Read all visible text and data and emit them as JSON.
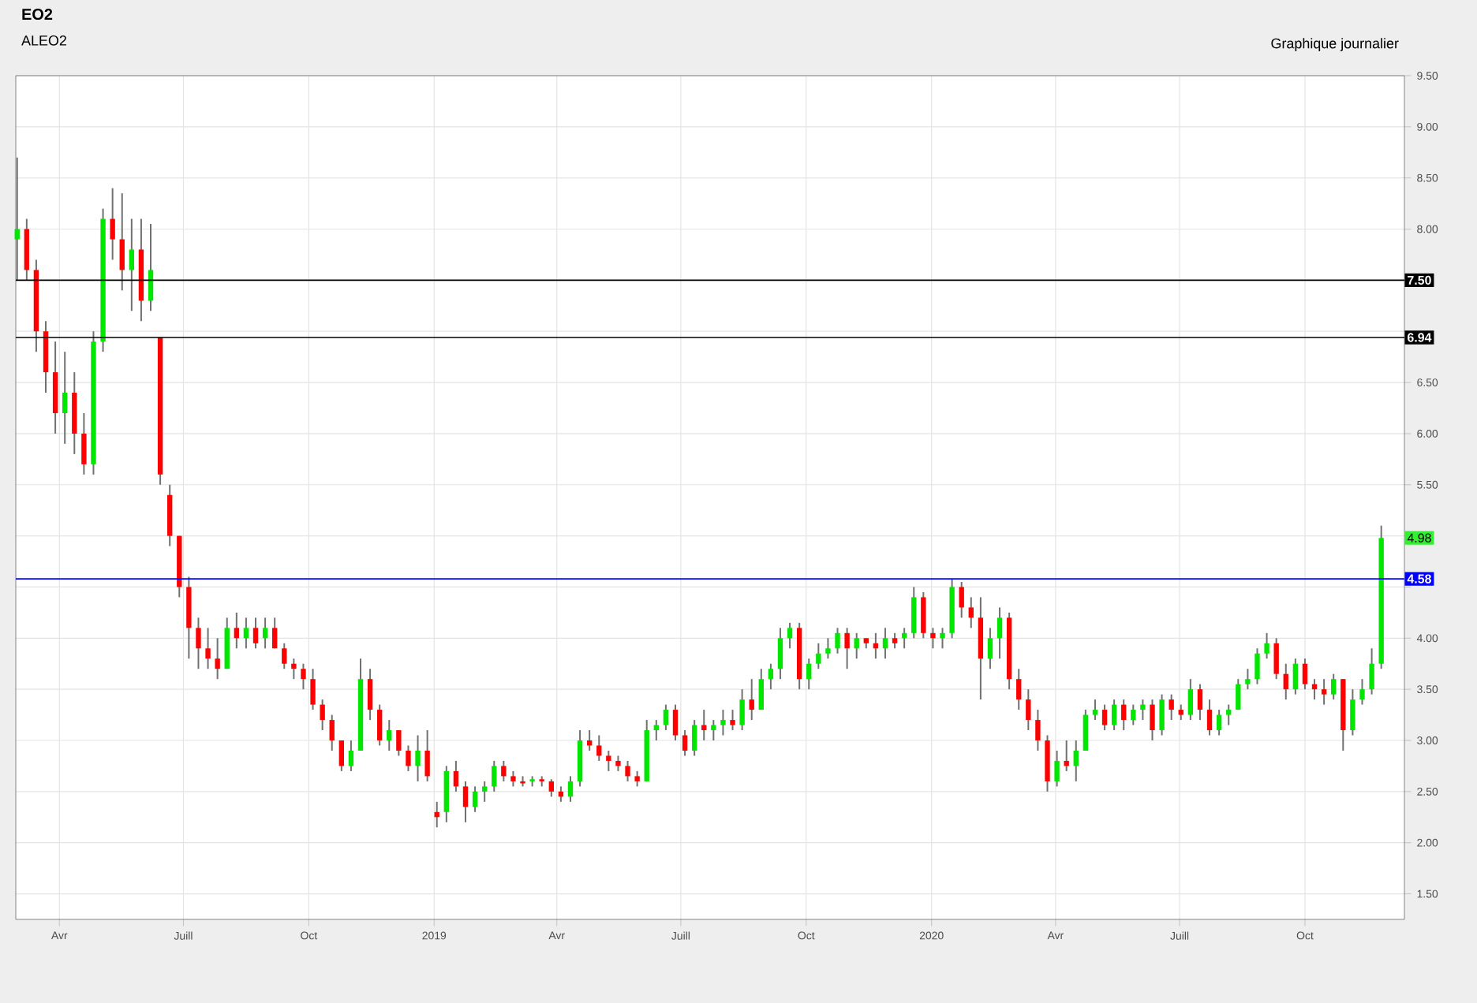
{
  "chart_data": {
    "type": "candlestick",
    "title": "EO2",
    "subtitle": "ALEO2",
    "annotations": [
      "Graphique journalier",
      {
        "text": "4.98",
        "y": 4.98
      }
    ],
    "x": [
      "2018-03-01",
      "2018-03-08",
      "2018-03-15",
      "2018-03-22",
      "2018-03-29",
      "2018-04-05",
      "2018-04-12",
      "2018-04-19",
      "2018-04-26",
      "2018-05-03",
      "2018-05-10",
      "2018-05-17",
      "2018-05-24",
      "2018-05-31",
      "2018-06-07",
      "2018-06-14",
      "2018-06-21",
      "2018-06-28",
      "2018-07-05",
      "2018-07-12",
      "2018-07-19",
      "2018-07-26",
      "2018-08-02",
      "2018-08-09",
      "2018-08-16",
      "2018-08-23",
      "2018-08-30",
      "2018-09-06",
      "2018-09-13",
      "2018-09-20",
      "2018-09-27",
      "2018-10-04",
      "2018-10-11",
      "2018-10-18",
      "2018-10-25",
      "2018-11-01",
      "2018-11-08",
      "2018-11-15",
      "2018-11-22",
      "2018-11-29",
      "2018-12-06",
      "2018-12-13",
      "2018-12-20",
      "2018-12-27",
      "2019-01-03",
      "2019-01-10",
      "2019-01-17",
      "2019-01-24",
      "2019-01-31",
      "2019-02-07",
      "2019-02-14",
      "2019-02-21",
      "2019-02-28",
      "2019-03-07",
      "2019-03-14",
      "2019-03-21",
      "2019-03-28",
      "2019-04-04",
      "2019-04-11",
      "2019-04-18",
      "2019-04-25",
      "2019-05-02",
      "2019-05-09",
      "2019-05-16",
      "2019-05-23",
      "2019-05-30",
      "2019-06-06",
      "2019-06-13",
      "2019-06-20",
      "2019-06-27",
      "2019-07-04",
      "2019-07-11",
      "2019-07-18",
      "2019-07-25",
      "2019-08-01",
      "2019-08-08",
      "2019-08-15",
      "2019-08-22",
      "2019-08-29",
      "2019-09-05",
      "2019-09-12",
      "2019-09-19",
      "2019-09-26",
      "2019-10-03",
      "2019-10-10",
      "2019-10-17",
      "2019-10-24",
      "2019-10-31",
      "2019-11-07",
      "2019-11-14",
      "2019-11-21",
      "2019-11-28",
      "2019-12-05",
      "2019-12-12",
      "2019-12-19",
      "2019-12-26",
      "2020-01-02",
      "2020-01-09",
      "2020-01-16",
      "2020-01-23",
      "2020-01-30",
      "2020-02-06",
      "2020-02-13",
      "2020-02-20",
      "2020-02-27",
      "2020-03-05",
      "2020-03-12",
      "2020-03-19",
      "2020-03-26",
      "2020-04-02",
      "2020-04-09",
      "2020-04-16",
      "2020-04-23",
      "2020-04-30",
      "2020-05-07",
      "2020-05-14",
      "2020-05-21",
      "2020-05-28",
      "2020-06-04",
      "2020-06-11",
      "2020-06-18",
      "2020-06-25",
      "2020-07-02",
      "2020-07-09",
      "2020-07-16",
      "2020-07-23",
      "2020-07-30",
      "2020-08-06",
      "2020-08-13",
      "2020-08-20",
      "2020-08-27",
      "2020-09-03",
      "2020-09-10",
      "2020-09-17",
      "2020-09-24",
      "2020-10-01",
      "2020-10-08",
      "2020-10-15",
      "2020-10-22",
      "2020-10-29",
      "2020-11-05",
      "2020-11-12",
      "2020-11-19",
      "2020-11-26"
    ],
    "ohlc": [
      [
        7.9,
        8.7,
        7.5,
        8.0
      ],
      [
        8.0,
        8.1,
        7.5,
        7.6
      ],
      [
        7.6,
        7.7,
        6.8,
        7.0
      ],
      [
        7.0,
        7.1,
        6.4,
        6.6
      ],
      [
        6.6,
        6.9,
        6.0,
        6.2
      ],
      [
        6.2,
        6.8,
        5.9,
        6.4
      ],
      [
        6.4,
        6.6,
        5.8,
        6.0
      ],
      [
        6.0,
        6.2,
        5.6,
        5.7
      ],
      [
        5.7,
        7.0,
        5.6,
        6.9
      ],
      [
        6.9,
        8.2,
        6.8,
        8.1
      ],
      [
        8.1,
        8.4,
        7.7,
        7.9
      ],
      [
        7.9,
        8.35,
        7.4,
        7.6
      ],
      [
        7.6,
        8.1,
        7.2,
        7.8
      ],
      [
        7.8,
        8.1,
        7.1,
        7.3
      ],
      [
        7.3,
        8.05,
        7.2,
        7.6
      ],
      [
        6.94,
        6.94,
        5.5,
        5.6
      ],
      [
        5.4,
        5.5,
        4.9,
        5.0
      ],
      [
        5.0,
        5.0,
        4.4,
        4.5
      ],
      [
        4.5,
        4.6,
        3.8,
        4.1
      ],
      [
        4.1,
        4.2,
        3.7,
        3.9
      ],
      [
        3.9,
        4.1,
        3.7,
        3.8
      ],
      [
        3.8,
        4.0,
        3.6,
        3.7
      ],
      [
        3.7,
        4.2,
        3.7,
        4.1
      ],
      [
        4.1,
        4.25,
        3.9,
        4.0
      ],
      [
        4.0,
        4.2,
        3.9,
        4.1
      ],
      [
        4.1,
        4.2,
        3.9,
        3.95
      ],
      [
        4.0,
        4.2,
        3.9,
        4.1
      ],
      [
        4.1,
        4.2,
        3.9,
        3.9
      ],
      [
        3.9,
        3.95,
        3.7,
        3.75
      ],
      [
        3.75,
        3.8,
        3.6,
        3.7
      ],
      [
        3.7,
        3.75,
        3.5,
        3.6
      ],
      [
        3.6,
        3.7,
        3.3,
        3.35
      ],
      [
        3.35,
        3.4,
        3.1,
        3.2
      ],
      [
        3.2,
        3.25,
        2.9,
        3.0
      ],
      [
        3.0,
        3.0,
        2.7,
        2.75
      ],
      [
        2.75,
        3.0,
        2.7,
        2.9
      ],
      [
        2.9,
        3.8,
        2.9,
        3.6
      ],
      [
        3.6,
        3.7,
        3.2,
        3.3
      ],
      [
        3.3,
        3.35,
        2.95,
        3.0
      ],
      [
        3.0,
        3.2,
        2.9,
        3.1
      ],
      [
        3.1,
        3.1,
        2.85,
        2.9
      ],
      [
        2.9,
        2.95,
        2.7,
        2.75
      ],
      [
        2.75,
        3.05,
        2.6,
        2.9
      ],
      [
        2.9,
        3.1,
        2.6,
        2.65
      ],
      [
        2.3,
        2.4,
        2.15,
        2.25
      ],
      [
        2.3,
        2.75,
        2.2,
        2.7
      ],
      [
        2.7,
        2.8,
        2.5,
        2.55
      ],
      [
        2.55,
        2.6,
        2.2,
        2.35
      ],
      [
        2.35,
        2.55,
        2.3,
        2.5
      ],
      [
        2.5,
        2.6,
        2.4,
        2.55
      ],
      [
        2.55,
        2.8,
        2.5,
        2.75
      ],
      [
        2.75,
        2.8,
        2.6,
        2.65
      ],
      [
        2.65,
        2.7,
        2.55,
        2.6
      ],
      [
        2.6,
        2.65,
        2.55,
        2.58
      ],
      [
        2.6,
        2.65,
        2.55,
        2.62
      ],
      [
        2.62,
        2.65,
        2.55,
        2.6
      ],
      [
        2.6,
        2.62,
        2.45,
        2.5
      ],
      [
        2.5,
        2.55,
        2.4,
        2.45
      ],
      [
        2.45,
        2.65,
        2.4,
        2.6
      ],
      [
        2.6,
        3.1,
        2.55,
        3.0
      ],
      [
        3.0,
        3.1,
        2.9,
        2.95
      ],
      [
        2.95,
        3.05,
        2.8,
        2.85
      ],
      [
        2.85,
        2.9,
        2.7,
        2.8
      ],
      [
        2.8,
        2.85,
        2.7,
        2.75
      ],
      [
        2.75,
        2.8,
        2.6,
        2.65
      ],
      [
        2.65,
        2.7,
        2.55,
        2.6
      ],
      [
        2.6,
        3.2,
        2.6,
        3.1
      ],
      [
        3.1,
        3.2,
        3.0,
        3.15
      ],
      [
        3.15,
        3.35,
        3.1,
        3.3
      ],
      [
        3.3,
        3.35,
        3.0,
        3.05
      ],
      [
        3.05,
        3.1,
        2.85,
        2.9
      ],
      [
        2.9,
        3.2,
        2.85,
        3.15
      ],
      [
        3.15,
        3.3,
        3.0,
        3.1
      ],
      [
        3.1,
        3.2,
        3.0,
        3.15
      ],
      [
        3.15,
        3.3,
        3.05,
        3.2
      ],
      [
        3.2,
        3.3,
        3.1,
        3.15
      ],
      [
        3.15,
        3.5,
        3.1,
        3.4
      ],
      [
        3.4,
        3.6,
        3.2,
        3.3
      ],
      [
        3.3,
        3.7,
        3.3,
        3.6
      ],
      [
        3.6,
        3.75,
        3.5,
        3.7
      ],
      [
        3.7,
        4.1,
        3.6,
        4.0
      ],
      [
        4.0,
        4.15,
        3.9,
        4.1
      ],
      [
        4.1,
        4.15,
        3.5,
        3.6
      ],
      [
        3.6,
        3.8,
        3.5,
        3.75
      ],
      [
        3.75,
        3.95,
        3.7,
        3.85
      ],
      [
        3.85,
        4.0,
        3.8,
        3.9
      ],
      [
        3.9,
        4.1,
        3.85,
        4.05
      ],
      [
        4.05,
        4.1,
        3.7,
        3.9
      ],
      [
        3.9,
        4.05,
        3.8,
        4.0
      ],
      [
        4.0,
        4.0,
        3.9,
        3.95
      ],
      [
        3.95,
        4.05,
        3.8,
        3.9
      ],
      [
        3.9,
        4.1,
        3.8,
        4.0
      ],
      [
        4.0,
        4.05,
        3.9,
        3.95
      ],
      [
        4.0,
        4.1,
        3.9,
        4.05
      ],
      [
        4.05,
        4.5,
        4.0,
        4.4
      ],
      [
        4.4,
        4.45,
        4.0,
        4.05
      ],
      [
        4.05,
        4.1,
        3.9,
        4.0
      ],
      [
        4.0,
        4.1,
        3.9,
        4.05
      ],
      [
        4.05,
        4.58,
        4.0,
        4.5
      ],
      [
        4.5,
        4.55,
        4.2,
        4.3
      ],
      [
        4.3,
        4.4,
        4.1,
        4.2
      ],
      [
        4.2,
        4.4,
        3.4,
        3.8
      ],
      [
        3.8,
        4.1,
        3.7,
        4.0
      ],
      [
        4.0,
        4.3,
        3.8,
        4.2
      ],
      [
        4.2,
        4.25,
        3.5,
        3.6
      ],
      [
        3.6,
        3.7,
        3.3,
        3.4
      ],
      [
        3.4,
        3.5,
        3.1,
        3.2
      ],
      [
        3.2,
        3.3,
        2.9,
        3.0
      ],
      [
        3.0,
        3.05,
        2.5,
        2.6
      ],
      [
        2.6,
        2.9,
        2.55,
        2.8
      ],
      [
        2.8,
        3.0,
        2.7,
        2.75
      ],
      [
        2.75,
        3.0,
        2.6,
        2.9
      ],
      [
        2.9,
        3.3,
        2.9,
        3.25
      ],
      [
        3.25,
        3.4,
        3.2,
        3.3
      ],
      [
        3.3,
        3.35,
        3.1,
        3.15
      ],
      [
        3.15,
        3.4,
        3.1,
        3.35
      ],
      [
        3.35,
        3.4,
        3.1,
        3.2
      ],
      [
        3.2,
        3.35,
        3.15,
        3.3
      ],
      [
        3.3,
        3.4,
        3.2,
        3.35
      ],
      [
        3.35,
        3.4,
        3.0,
        3.1
      ],
      [
        3.1,
        3.45,
        3.05,
        3.4
      ],
      [
        3.4,
        3.45,
        3.2,
        3.3
      ],
      [
        3.3,
        3.35,
        3.2,
        3.25
      ],
      [
        3.25,
        3.6,
        3.2,
        3.5
      ],
      [
        3.5,
        3.55,
        3.2,
        3.3
      ],
      [
        3.3,
        3.4,
        3.05,
        3.1
      ],
      [
        3.1,
        3.3,
        3.05,
        3.25
      ],
      [
        3.25,
        3.35,
        3.15,
        3.3
      ],
      [
        3.3,
        3.6,
        3.3,
        3.55
      ],
      [
        3.55,
        3.7,
        3.5,
        3.6
      ],
      [
        3.6,
        3.9,
        3.55,
        3.85
      ],
      [
        3.85,
        4.05,
        3.8,
        3.95
      ],
      [
        3.95,
        4.0,
        3.6,
        3.65
      ],
      [
        3.65,
        3.75,
        3.4,
        3.5
      ],
      [
        3.5,
        3.8,
        3.45,
        3.75
      ],
      [
        3.75,
        3.8,
        3.5,
        3.55
      ],
      [
        3.55,
        3.6,
        3.4,
        3.5
      ],
      [
        3.5,
        3.6,
        3.35,
        3.45
      ],
      [
        3.45,
        3.65,
        3.4,
        3.6
      ],
      [
        3.6,
        3.6,
        2.9,
        3.1
      ],
      [
        3.1,
        3.5,
        3.05,
        3.4
      ],
      [
        3.4,
        3.6,
        3.35,
        3.5
      ],
      [
        3.5,
        3.9,
        3.45,
        3.75
      ],
      [
        3.75,
        5.1,
        3.7,
        4.98
      ]
    ],
    "xlim": [
      "2018-02-28",
      "2020-12-13"
    ],
    "xticks": [
      {
        "value": "2018-04-01",
        "label": "Avr"
      },
      {
        "value": "2018-07-01",
        "label": "Juill"
      },
      {
        "value": "2018-10-01",
        "label": "Oct"
      },
      {
        "value": "2019-01-01",
        "label": "2019"
      },
      {
        "value": "2019-04-01",
        "label": "Avr"
      },
      {
        "value": "2019-07-01",
        "label": "Juill"
      },
      {
        "value": "2019-10-01",
        "label": "Oct"
      },
      {
        "value": "2020-01-01",
        "label": "2020"
      },
      {
        "value": "2020-04-01",
        "label": "Avr"
      },
      {
        "value": "2020-07-01",
        "label": "Juill"
      },
      {
        "value": "2020-10-01",
        "label": "Oct"
      }
    ],
    "ylim": [
      1.25,
      9.5
    ],
    "yticks": [
      {
        "value": 1.5,
        "label": "1.50"
      },
      {
        "value": 2.0,
        "label": "2.00"
      },
      {
        "value": 2.5,
        "label": "2.50"
      },
      {
        "value": 3.0,
        "label": "3.00"
      },
      {
        "value": 3.5,
        "label": "3.50"
      },
      {
        "value": 4.0,
        "label": "4.00"
      },
      {
        "value": 4.5,
        "label": null
      },
      {
        "value": 5.0,
        "label": null
      },
      {
        "value": 5.5,
        "label": "5.50"
      },
      {
        "value": 6.0,
        "label": "6.00"
      },
      {
        "value": 6.5,
        "label": "6.50"
      },
      {
        "value": 7.0,
        "label": null
      },
      {
        "value": 7.5,
        "label": null
      },
      {
        "value": 8.0,
        "label": "8.00"
      },
      {
        "value": 8.5,
        "label": "8.50"
      },
      {
        "value": 9.0,
        "label": "9.00"
      },
      {
        "value": 9.5,
        "label": "9.50"
      }
    ],
    "ref_lines": [
      {
        "axis": "y",
        "value": 7.5,
        "label": "7.50",
        "color": "#000000"
      },
      {
        "axis": "y",
        "value": 6.94,
        "label": "6.94",
        "color": "#000000"
      },
      {
        "axis": "y",
        "value": 4.58,
        "label": "4.58",
        "color": "#0000ff"
      }
    ],
    "grid": true
  }
}
